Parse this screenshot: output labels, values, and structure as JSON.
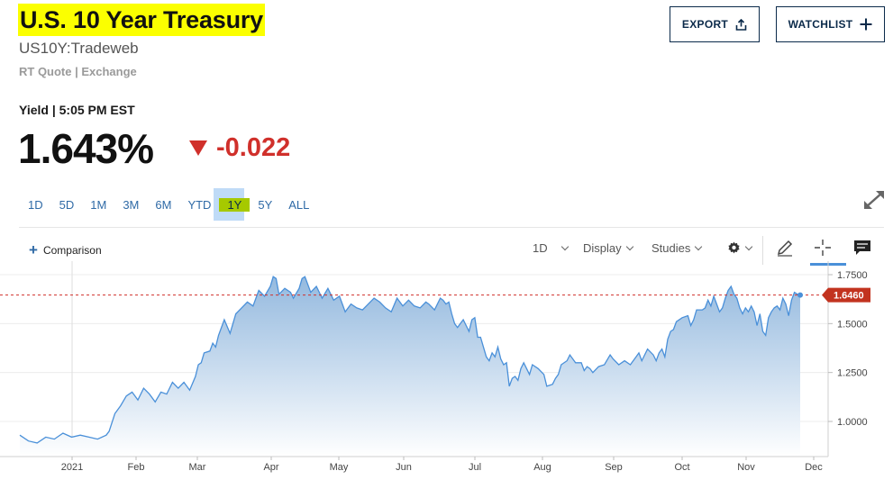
{
  "header": {
    "title": "U.S. 10 Year Treasury",
    "symbol": "US10Y:Tradeweb",
    "quote_source": "RT Quote | Exchange",
    "export_label": "EXPORT",
    "watchlist_label": "WATCHLIST"
  },
  "quote": {
    "label": "Yield | 5:05 PM EST",
    "price": "1.643%",
    "change": "-0.022",
    "change_direction": "down",
    "down_color": "#d0302b"
  },
  "ranges": [
    "1D",
    "5D",
    "1M",
    "3M",
    "6M",
    "YTD",
    "1Y",
    "5Y",
    "ALL"
  ],
  "active_range": "1Y",
  "toolbar": {
    "comparison_label": "Comparison",
    "interval_label": "1D",
    "display_label": "Display",
    "studies_label": "Studies",
    "icons": [
      "gear-icon",
      "pencil-icon",
      "crosshair-icon",
      "comment-icon"
    ]
  },
  "chart_data": {
    "type": "area",
    "last_value_label": "1.6460",
    "last_value": 1.646,
    "x_ticks": [
      "2021",
      "Feb",
      "Mar",
      "Apr",
      "May",
      "Jun",
      "Jul",
      "Aug",
      "Sep",
      "Oct",
      "Nov",
      "Dec"
    ],
    "y_ticks": [
      "1.7500",
      "1.5000",
      "1.2500",
      "1.0000"
    ],
    "ylim": [
      0.89,
      1.77
    ],
    "line_color": "#4a90d9",
    "series": [
      {
        "points": [
          [
            0,
            0.93
          ],
          [
            3,
            0.9
          ],
          [
            6,
            0.89
          ],
          [
            9,
            0.92
          ],
          [
            12,
            0.91
          ],
          [
            15,
            0.94
          ],
          [
            18,
            0.92
          ],
          [
            21,
            0.93
          ],
          [
            24,
            0.92
          ],
          [
            27,
            0.91
          ],
          [
            30,
            0.93
          ],
          [
            31,
            0.95
          ],
          [
            33,
            1.04
          ],
          [
            35,
            1.08
          ],
          [
            37,
            1.13
          ],
          [
            39,
            1.15
          ],
          [
            41,
            1.11
          ],
          [
            43,
            1.17
          ],
          [
            45,
            1.14
          ],
          [
            47,
            1.1
          ],
          [
            49,
            1.15
          ],
          [
            51,
            1.14
          ],
          [
            53,
            1.2
          ],
          [
            55,
            1.17
          ],
          [
            57,
            1.2
          ],
          [
            59,
            1.16
          ],
          [
            61,
            1.23
          ],
          [
            62,
            1.29
          ],
          [
            63,
            1.3
          ],
          [
            64,
            1.35
          ],
          [
            66,
            1.36
          ],
          [
            67,
            1.4
          ],
          [
            68,
            1.38
          ],
          [
            69,
            1.44
          ],
          [
            71,
            1.52
          ],
          [
            73,
            1.45
          ],
          [
            75,
            1.55
          ],
          [
            77,
            1.58
          ],
          [
            79,
            1.61
          ],
          [
            81,
            1.59
          ],
          [
            83,
            1.67
          ],
          [
            85,
            1.64
          ],
          [
            87,
            1.69
          ],
          [
            88,
            1.74
          ],
          [
            89,
            1.73
          ],
          [
            90,
            1.65
          ],
          [
            92,
            1.68
          ],
          [
            94,
            1.66
          ],
          [
            95,
            1.63
          ],
          [
            97,
            1.68
          ],
          [
            98,
            1.73
          ],
          [
            99,
            1.74
          ],
          [
            101,
            1.66
          ],
          [
            103,
            1.69
          ],
          [
            105,
            1.63
          ],
          [
            107,
            1.68
          ],
          [
            109,
            1.62
          ],
          [
            111,
            1.64
          ],
          [
            113,
            1.56
          ],
          [
            115,
            1.6
          ],
          [
            117,
            1.58
          ],
          [
            119,
            1.57
          ],
          [
            121,
            1.6
          ],
          [
            123,
            1.63
          ],
          [
            125,
            1.61
          ],
          [
            127,
            1.58
          ],
          [
            129,
            1.56
          ],
          [
            131,
            1.63
          ],
          [
            133,
            1.59
          ],
          [
            135,
            1.62
          ],
          [
            137,
            1.59
          ],
          [
            139,
            1.58
          ],
          [
            141,
            1.61
          ],
          [
            142,
            1.6
          ],
          [
            144,
            1.57
          ],
          [
            146,
            1.63
          ],
          [
            147,
            1.62
          ],
          [
            148,
            1.6
          ],
          [
            149,
            1.61
          ],
          [
            150,
            1.55
          ],
          [
            151,
            1.5
          ],
          [
            152,
            1.48
          ],
          [
            153,
            1.5
          ],
          [
            154,
            1.52
          ],
          [
            155,
            1.49
          ],
          [
            156,
            1.46
          ],
          [
            157,
            1.52
          ],
          [
            158,
            1.53
          ],
          [
            159,
            1.43
          ],
          [
            160,
            1.43
          ],
          [
            161,
            1.38
          ],
          [
            162,
            1.33
          ],
          [
            163,
            1.31
          ],
          [
            164,
            1.35
          ],
          [
            165,
            1.33
          ],
          [
            166,
            1.38
          ],
          [
            167,
            1.32
          ],
          [
            168,
            1.29
          ],
          [
            169,
            1.3
          ],
          [
            170,
            1.18
          ],
          [
            171,
            1.22
          ],
          [
            172,
            1.23
          ],
          [
            173,
            1.21
          ],
          [
            174,
            1.27
          ],
          [
            175,
            1.3
          ],
          [
            176,
            1.27
          ],
          [
            177,
            1.24
          ],
          [
            178,
            1.29
          ],
          [
            180,
            1.27
          ],
          [
            182,
            1.24
          ],
          [
            183,
            1.18
          ],
          [
            185,
            1.19
          ],
          [
            186,
            1.22
          ],
          [
            187,
            1.24
          ],
          [
            188,
            1.29
          ],
          [
            190,
            1.31
          ],
          [
            191,
            1.34
          ],
          [
            193,
            1.3
          ],
          [
            195,
            1.3
          ],
          [
            196,
            1.26
          ],
          [
            197,
            1.28
          ],
          [
            198,
            1.27
          ],
          [
            199,
            1.25
          ],
          [
            201,
            1.28
          ],
          [
            203,
            1.29
          ],
          [
            205,
            1.34
          ],
          [
            206,
            1.32
          ],
          [
            208,
            1.29
          ],
          [
            209,
            1.3
          ],
          [
            210,
            1.31
          ],
          [
            212,
            1.29
          ],
          [
            214,
            1.33
          ],
          [
            215,
            1.35
          ],
          [
            216,
            1.31
          ],
          [
            218,
            1.37
          ],
          [
            220,
            1.34
          ],
          [
            221,
            1.31
          ],
          [
            222,
            1.35
          ],
          [
            223,
            1.37
          ],
          [
            224,
            1.33
          ],
          [
            225,
            1.42
          ],
          [
            226,
            1.46
          ],
          [
            227,
            1.47
          ],
          [
            228,
            1.51
          ],
          [
            230,
            1.53
          ],
          [
            232,
            1.54
          ],
          [
            233,
            1.49
          ],
          [
            234,
            1.52
          ],
          [
            235,
            1.57
          ],
          [
            237,
            1.57
          ],
          [
            238,
            1.58
          ],
          [
            239,
            1.62
          ],
          [
            240,
            1.59
          ],
          [
            241,
            1.64
          ],
          [
            242,
            1.6
          ],
          [
            243,
            1.56
          ],
          [
            244,
            1.58
          ],
          [
            245,
            1.63
          ],
          [
            246,
            1.67
          ],
          [
            247,
            1.69
          ],
          [
            248,
            1.65
          ],
          [
            249,
            1.63
          ],
          [
            250,
            1.58
          ],
          [
            251,
            1.55
          ],
          [
            252,
            1.58
          ],
          [
            253,
            1.56
          ],
          [
            254,
            1.59
          ],
          [
            255,
            1.56
          ],
          [
            256,
            1.49
          ],
          [
            257,
            1.55
          ],
          [
            258,
            1.46
          ],
          [
            259,
            1.44
          ],
          [
            260,
            1.53
          ],
          [
            261,
            1.56
          ],
          [
            262,
            1.58
          ],
          [
            263,
            1.59
          ],
          [
            264,
            1.57
          ],
          [
            265,
            1.63
          ],
          [
            266,
            1.6
          ],
          [
            267,
            1.54
          ],
          [
            268,
            1.62
          ],
          [
            269,
            1.66
          ],
          [
            270,
            1.65
          ],
          [
            271,
            1.646
          ]
        ]
      }
    ]
  }
}
